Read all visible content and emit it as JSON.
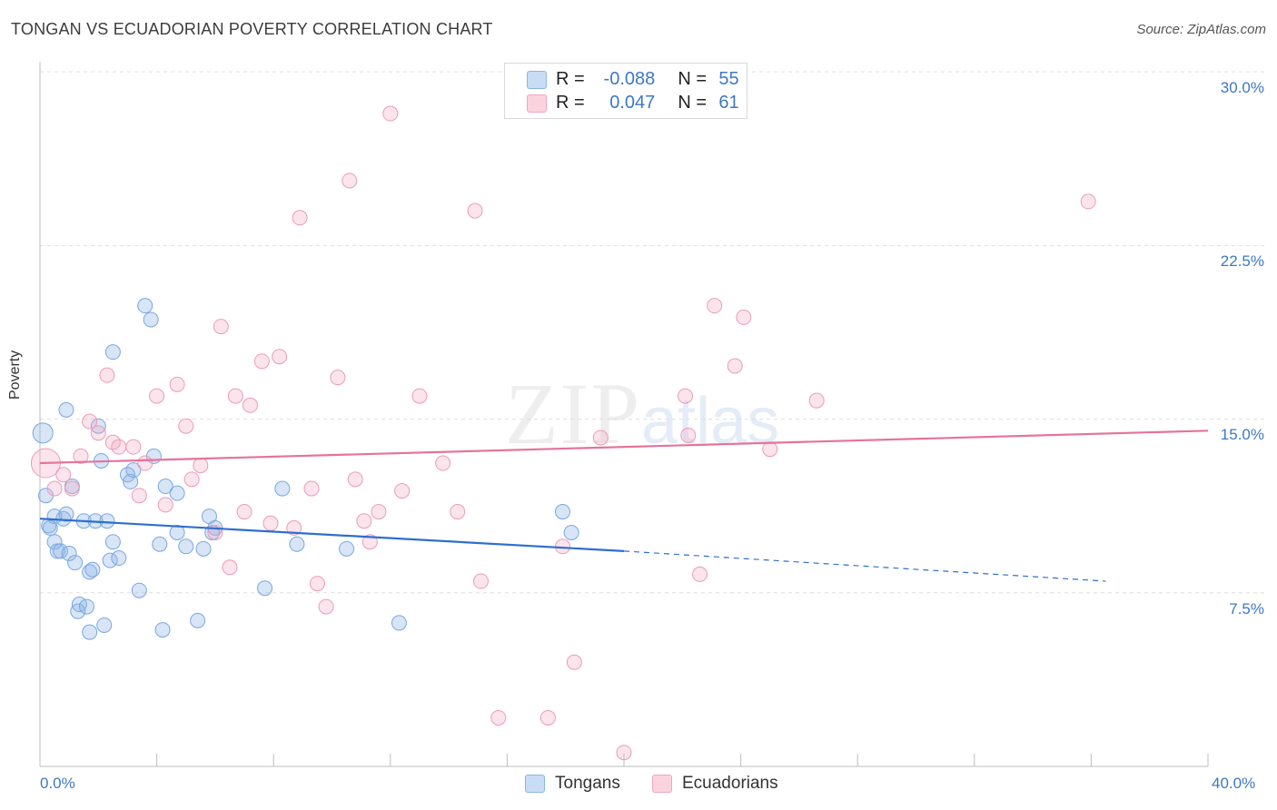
{
  "title": "TONGAN VS ECUADORIAN POVERTY CORRELATION CHART",
  "source": "Source: ZipAtlas.com",
  "watermark": {
    "zip": "ZIP",
    "atlas": "atlas"
  },
  "colors": {
    "blue": "#8bb4e8",
    "blue_line": "#2e6fcc",
    "pink": "#f2a6bf",
    "pink_line": "#e4749a",
    "tick_text": "#3e78c5"
  },
  "legend": {
    "rows": [
      {
        "r_label": "R =",
        "r_value": "-0.088",
        "n_label": "N =",
        "n_value": "55",
        "color": "#8bb4e8"
      },
      {
        "r_label": "R =",
        "r_value": "0.047",
        "n_label": "N =",
        "n_value": "61",
        "color": "#f2a6bf"
      }
    ]
  },
  "bottom_legend": [
    {
      "label": "Tongans",
      "color": "#8bb4e8"
    },
    {
      "label": "Ecuadorians",
      "color": "#f2a6bf"
    }
  ],
  "chart_data": {
    "type": "scatter",
    "title": "TONGAN VS ECUADORIAN POVERTY CORRELATION CHART",
    "xlabel": "",
    "ylabel": "Poverty",
    "xlim": [
      0,
      40
    ],
    "ylim": [
      0,
      31.5
    ],
    "x_tick_labels": [
      "0.0%",
      "40.0%"
    ],
    "y_ticks": [
      7.5,
      15.0,
      22.5,
      30.0
    ],
    "y_tick_labels": [
      "7.5%",
      "15.0%",
      "22.5%",
      "30.0%"
    ],
    "grid": true,
    "series": [
      {
        "name": "Tongans",
        "color": "#8bb4e8",
        "trend": {
          "x": [
            0,
            20
          ],
          "y": [
            10.7,
            9.3
          ],
          "dashed_to": [
            36.5,
            8.0
          ]
        },
        "points": [
          [
            0.1,
            14.4
          ],
          [
            0.2,
            11.7
          ],
          [
            0.3,
            10.4
          ],
          [
            0.35,
            10.3
          ],
          [
            0.5,
            10.8
          ],
          [
            0.5,
            9.7
          ],
          [
            0.6,
            9.3
          ],
          [
            0.7,
            9.3
          ],
          [
            0.8,
            10.7
          ],
          [
            0.9,
            15.4
          ],
          [
            0.9,
            10.9
          ],
          [
            1.0,
            9.2
          ],
          [
            1.1,
            12.1
          ],
          [
            1.2,
            8.8
          ],
          [
            1.3,
            6.7
          ],
          [
            1.35,
            7.0
          ],
          [
            1.5,
            10.6
          ],
          [
            1.6,
            6.9
          ],
          [
            1.7,
            8.4
          ],
          [
            1.7,
            5.8
          ],
          [
            1.8,
            8.5
          ],
          [
            1.9,
            10.6
          ],
          [
            2.0,
            14.7
          ],
          [
            2.1,
            13.2
          ],
          [
            2.2,
            6.1
          ],
          [
            2.3,
            10.6
          ],
          [
            2.4,
            8.9
          ],
          [
            2.5,
            17.9
          ],
          [
            2.5,
            9.7
          ],
          [
            2.7,
            9.0
          ],
          [
            3.0,
            12.6
          ],
          [
            3.1,
            12.3
          ],
          [
            3.2,
            12.8
          ],
          [
            3.4,
            7.6
          ],
          [
            3.6,
            19.9
          ],
          [
            3.8,
            19.3
          ],
          [
            3.9,
            13.4
          ],
          [
            4.1,
            9.6
          ],
          [
            4.2,
            5.9
          ],
          [
            4.3,
            12.1
          ],
          [
            4.7,
            10.1
          ],
          [
            4.7,
            11.8
          ],
          [
            5.0,
            9.5
          ],
          [
            5.4,
            6.3
          ],
          [
            5.6,
            9.4
          ],
          [
            5.8,
            10.8
          ],
          [
            5.9,
            10.1
          ],
          [
            6.0,
            10.3
          ],
          [
            7.7,
            7.7
          ],
          [
            8.3,
            12.0
          ],
          [
            8.8,
            9.6
          ],
          [
            10.5,
            9.4
          ],
          [
            12.3,
            6.2
          ],
          [
            17.9,
            11.0
          ],
          [
            18.2,
            10.1
          ]
        ]
      },
      {
        "name": "Ecuadorians",
        "color": "#f2a6bf",
        "trend": {
          "x": [
            0,
            40
          ],
          "y": [
            13.1,
            14.5
          ]
        },
        "points": [
          [
            0.2,
            13.1
          ],
          [
            0.5,
            12.0
          ],
          [
            0.8,
            12.6
          ],
          [
            1.1,
            12.0
          ],
          [
            1.4,
            13.4
          ],
          [
            1.7,
            14.9
          ],
          [
            2.0,
            14.4
          ],
          [
            2.3,
            16.9
          ],
          [
            2.5,
            14.0
          ],
          [
            2.7,
            13.8
          ],
          [
            3.2,
            13.8
          ],
          [
            3.4,
            11.7
          ],
          [
            3.6,
            13.1
          ],
          [
            4.0,
            16.0
          ],
          [
            4.3,
            11.3
          ],
          [
            4.7,
            16.5
          ],
          [
            5.0,
            14.7
          ],
          [
            5.2,
            12.4
          ],
          [
            5.5,
            13.0
          ],
          [
            6.0,
            10.1
          ],
          [
            6.2,
            19.0
          ],
          [
            6.5,
            8.6
          ],
          [
            6.7,
            16.0
          ],
          [
            7.0,
            11.0
          ],
          [
            7.2,
            15.6
          ],
          [
            7.6,
            17.5
          ],
          [
            7.9,
            10.5
          ],
          [
            8.2,
            17.7
          ],
          [
            8.7,
            10.3
          ],
          [
            8.9,
            23.7
          ],
          [
            9.3,
            12.0
          ],
          [
            9.5,
            7.9
          ],
          [
            9.8,
            6.9
          ],
          [
            10.2,
            16.8
          ],
          [
            10.6,
            25.3
          ],
          [
            10.8,
            12.4
          ],
          [
            11.1,
            10.6
          ],
          [
            11.3,
            9.7
          ],
          [
            11.6,
            11.0
          ],
          [
            12.0,
            28.2
          ],
          [
            12.4,
            11.9
          ],
          [
            13.0,
            16.0
          ],
          [
            13.8,
            13.1
          ],
          [
            14.3,
            11.0
          ],
          [
            14.9,
            24.0
          ],
          [
            15.1,
            8.0
          ],
          [
            15.7,
            2.1
          ],
          [
            17.4,
            2.1
          ],
          [
            17.9,
            9.5
          ],
          [
            18.3,
            4.5
          ],
          [
            19.2,
            14.2
          ],
          [
            20.0,
            0.6
          ],
          [
            22.1,
            16.0
          ],
          [
            22.2,
            14.3
          ],
          [
            22.6,
            8.3
          ],
          [
            23.1,
            19.9
          ],
          [
            23.8,
            17.3
          ],
          [
            24.1,
            19.4
          ],
          [
            25.0,
            13.7
          ],
          [
            26.6,
            15.8
          ],
          [
            35.9,
            24.4
          ]
        ]
      }
    ]
  }
}
